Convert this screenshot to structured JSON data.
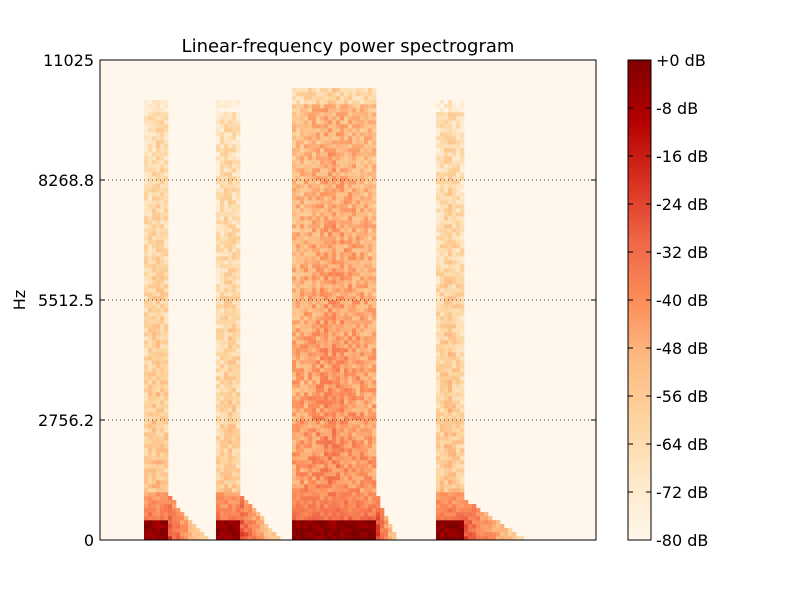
{
  "chart_data": {
    "type": "heatmap",
    "title": "Linear-frequency power spectrogram",
    "xlabel": "",
    "ylabel": "Hz",
    "y_range": [
      0,
      11025
    ],
    "y_ticks": [
      0,
      2756.2,
      5512.5,
      8268.8,
      11025
    ],
    "y_tick_labels": [
      "0",
      "2756.2",
      "5512.5",
      "8268.8",
      "11025"
    ],
    "grid": "horizontal dotted at y ticks",
    "colormap": "OrRd",
    "colormap_stops": [
      "#fff7ec",
      "#fee8c8",
      "#fdd49e",
      "#fdbb84",
      "#fc8d59",
      "#ef6548",
      "#d7301f",
      "#b30000",
      "#7f0000"
    ],
    "colorbar": {
      "range_db": [
        -80,
        0
      ],
      "ticks_db": [
        0,
        -8,
        -16,
        -24,
        -32,
        -40,
        -48,
        -56,
        -64,
        -72,
        -80
      ],
      "tick_labels": [
        "+0 dB",
        "-8 dB",
        "-16 dB",
        "-24 dB",
        "-32 dB",
        "-40 dB",
        "-48 dB",
        "-56 dB",
        "-64 dB",
        "-72 dB",
        "-80 dB"
      ]
    },
    "background_db": -80,
    "events": [
      {
        "onset": 0.09,
        "offset": 0.14,
        "decay_end": 0.22,
        "peak_db": -4,
        "body_db": -58,
        "top_hz": 10100
      },
      {
        "onset": 0.235,
        "offset": 0.285,
        "decay_end": 0.37,
        "peak_db": -4,
        "body_db": -60,
        "top_hz": 10100
      },
      {
        "onset": 0.385,
        "offset": 0.56,
        "decay_end": 0.6,
        "peak_db": -2,
        "body_db": -44,
        "top_hz": 10350
      },
      {
        "onset": 0.68,
        "offset": 0.73,
        "decay_end": 0.86,
        "peak_db": -3,
        "body_db": -58,
        "top_hz": 10100
      }
    ]
  }
}
